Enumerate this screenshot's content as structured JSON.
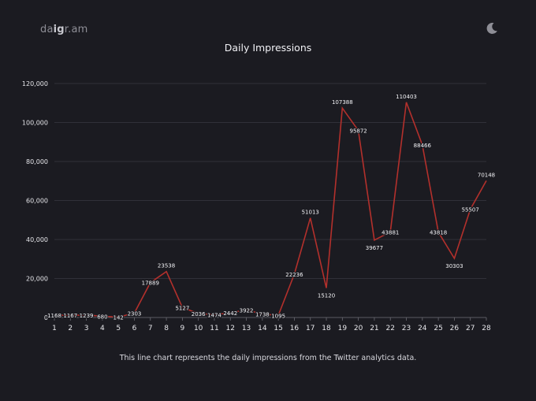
{
  "brand": {
    "name_prefix": "da",
    "name_strong": "ig",
    "name_suffix": "r.am"
  },
  "theme_toggle": {
    "icon": "moon-icon"
  },
  "caption": "This line chart represents the daily impressions from the Twitter analytics data.",
  "colors": {
    "background": "#1b1b21",
    "line": "#b3302c",
    "grid": "#3a3a42",
    "text": "#e6e6ea"
  },
  "chart_data": {
    "type": "line",
    "title": "Daily Impressions",
    "xlabel": "",
    "ylabel": "",
    "x": [
      1,
      2,
      3,
      4,
      5,
      6,
      7,
      8,
      9,
      10,
      11,
      12,
      13,
      14,
      15,
      16,
      17,
      18,
      19,
      20,
      21,
      22,
      23,
      24,
      25,
      26,
      27,
      28
    ],
    "y": [
      1168,
      1167,
      1239,
      680,
      142,
      2303,
      17889,
      23538,
      5127,
      2036,
      1474,
      2442,
      3922,
      1738,
      1095,
      22236,
      51013,
      15120,
      107388,
      95872,
      39677,
      43881,
      110403,
      88466,
      43818,
      30303,
      55507,
      70148
    ],
    "data_labels": [
      "1168",
      "1167",
      "1239",
      "680",
      "142",
      "2303",
      "17889",
      "23538",
      "5127",
      "2036",
      "1474",
      "2442",
      "3922",
      "1738",
      "1095",
      "22236",
      "51013",
      "15120",
      "107388",
      "95872",
      "39677",
      "43881",
      "110403",
      "88466",
      "43818",
      "30303",
      "55507",
      "70148"
    ],
    "x_tick_labels": [
      "1",
      "2",
      "3",
      "4",
      "5",
      "6",
      "7",
      "8",
      "9",
      "10",
      "11",
      "12",
      "13",
      "14",
      "15",
      "16",
      "17",
      "18",
      "19",
      "20",
      "21",
      "22",
      "23",
      "24",
      "25",
      "26",
      "27",
      "28"
    ],
    "y_ticks": [
      0,
      20000,
      40000,
      60000,
      80000,
      100000,
      120000
    ],
    "y_tick_labels": [
      "0",
      "20,000",
      "40,000",
      "60,000",
      "80,000",
      "100,000",
      "120,000"
    ],
    "ylim": [
      0,
      120000
    ],
    "grid": "horizontal",
    "legend": "none"
  }
}
